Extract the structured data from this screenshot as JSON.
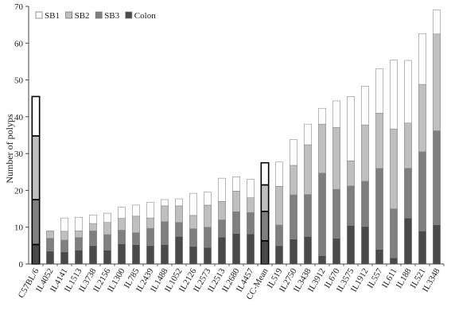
{
  "chart_data": {
    "type": "bar",
    "stacked": true,
    "ylabel": "Number of polyps",
    "xlabel": "",
    "ylim": [
      0,
      70
    ],
    "yticks": [
      0,
      10,
      20,
      30,
      40,
      50,
      60,
      70
    ],
    "grid": false,
    "legend_position": "top-left",
    "categories": [
      "C57BL/6",
      "IL4052",
      "IL4141",
      "IL1513",
      "IL3738",
      "IL2156",
      "IL1300",
      "IL785",
      "IL2439",
      "IL1488",
      "IL1052",
      "IL2126",
      "IL2573",
      "IL2513",
      "IL2680",
      "IL4457",
      "CC-Mean",
      "IL519",
      "IL2750",
      "IL3438",
      "IL3912",
      "IL670",
      "IL3575",
      "IL1912",
      "IL557",
      "IL611",
      "IL188",
      "IL521",
      "IL3348"
    ],
    "highlighted_categories": [
      "C57BL/6",
      "CC-Mean"
    ],
    "series": [
      {
        "name": "Colon",
        "color": "#4a4a4a",
        "values": [
          5.3,
          3.5,
          3.3,
          3.8,
          5.0,
          3.8,
          5.5,
          5.3,
          5.0,
          5.3,
          7.5,
          4.8,
          4.5,
          7.3,
          8.3,
          8.2,
          6.3,
          5.0,
          6.8,
          7.5,
          2.3,
          7.0,
          10.5,
          10.2,
          4.0,
          1.7,
          12.5,
          9.0,
          10.7
        ]
      },
      {
        "name": "SB3",
        "color": "#7f7f7f",
        "values": [
          12.2,
          3.5,
          3.2,
          3.4,
          4.0,
          4.2,
          3.7,
          3.2,
          4.7,
          6.2,
          3.8,
          4.8,
          5.5,
          4.7,
          5.9,
          5.8,
          8.0,
          5.6,
          12.0,
          11.4,
          22.4,
          13.3,
          10.7,
          12.3,
          22.0,
          13.3,
          13.5,
          21.5,
          25.5
        ]
      },
      {
        "name": "SB2",
        "color": "#bfbfbf",
        "values": [
          17.3,
          2.0,
          2.4,
          1.8,
          2.0,
          3.3,
          3.2,
          4.5,
          2.8,
          4.3,
          4.5,
          3.6,
          6.0,
          5.0,
          5.6,
          4.0,
          7.2,
          10.5,
          8.0,
          13.5,
          13.3,
          16.8,
          6.8,
          15.3,
          15.0,
          21.7,
          12.3,
          18.3,
          26.3
        ]
      },
      {
        "name": "SB1",
        "color": "#ffffff",
        "values": [
          10.7,
          0.0,
          3.6,
          3.7,
          2.3,
          2.5,
          3.0,
          3.0,
          4.2,
          1.7,
          1.9,
          6.0,
          3.5,
          6.3,
          3.9,
          5.0,
          6.0,
          6.6,
          7.0,
          5.6,
          4.3,
          7.2,
          17.5,
          10.5,
          12.0,
          18.7,
          17.0,
          13.8,
          6.5
        ]
      }
    ],
    "legend": [
      {
        "name": "SB1",
        "color": "#ffffff"
      },
      {
        "name": "SB2",
        "color": "#bfbfbf"
      },
      {
        "name": "SB3",
        "color": "#7f7f7f"
      },
      {
        "name": "Colon",
        "color": "#4a4a4a"
      }
    ]
  }
}
